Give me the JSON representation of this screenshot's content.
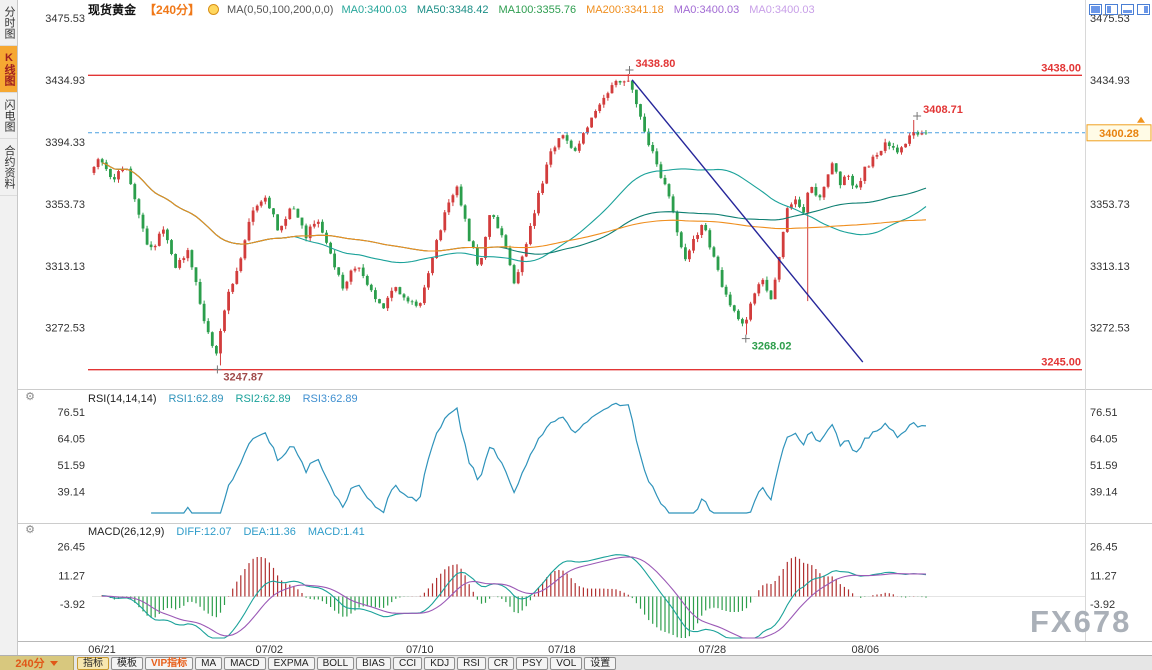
{
  "sidebar": {
    "items": [
      {
        "label": "分时图",
        "active": false
      },
      {
        "label": "K线图",
        "active": true
      },
      {
        "label": "闪电图",
        "active": false
      },
      {
        "label": "合约资料",
        "active": false
      }
    ]
  },
  "header": {
    "symbol": "现货黄金",
    "period_tag": "【240分】",
    "ma_settings": "MA(0,50,100,200,0,0)",
    "ma_values": [
      {
        "label": "MA0:3400.03",
        "color": "#26a69a"
      },
      {
        "label": "MA50:3348.42",
        "color": "#1b8e86"
      },
      {
        "label": "MA100:3355.76",
        "color": "#2e9e50"
      },
      {
        "label": "MA200:3341.18",
        "color": "#ef8e1e"
      },
      {
        "label": "MA0:3400.03",
        "color": "#a26bd4"
      },
      {
        "label": "MA0:3400.03",
        "color": "#c89fe8"
      }
    ],
    "corner_icons": [
      "layout-single-icon",
      "layout-columns-icon",
      "layout-rows-icon",
      "layout-grid-icon"
    ]
  },
  "rsi_header": {
    "title": "RSI(14,14,14)",
    "values": [
      {
        "label": "RSI1:62.89",
        "color": "#2f93bb"
      },
      {
        "label": "RSI2:62.89",
        "color": "#1ba29a"
      },
      {
        "label": "RSI3:62.89",
        "color": "#3f8fd0"
      }
    ]
  },
  "macd_header": {
    "title": "MACD(26,12,9)",
    "values": [
      {
        "label": "DIFF:12.07",
        "color": "#2f9cc9"
      },
      {
        "label": "DEA:11.36",
        "color": "#2f9cc9"
      },
      {
        "label": "MACD:1.41",
        "color": "#2f9cc9"
      }
    ]
  },
  "toolbar": {
    "period": "240分",
    "items": [
      {
        "label": "指标",
        "style": "active"
      },
      {
        "label": "模板",
        "style": ""
      },
      {
        "label": "VIP指标",
        "style": "vip"
      },
      {
        "label": "MA",
        "style": ""
      },
      {
        "label": "MACD",
        "style": ""
      },
      {
        "label": "EXPMA",
        "style": ""
      },
      {
        "label": "BOLL",
        "style": ""
      },
      {
        "label": "BIAS",
        "style": ""
      },
      {
        "label": "CCI",
        "style": ""
      },
      {
        "label": "KDJ",
        "style": ""
      },
      {
        "label": "RSI",
        "style": ""
      },
      {
        "label": "CR",
        "style": ""
      },
      {
        "label": "PSY",
        "style": ""
      },
      {
        "label": "VOL",
        "style": ""
      },
      {
        "label": "设置",
        "style": ""
      }
    ]
  },
  "watermark": "FX678",
  "icons": {
    "gear": "⚙"
  },
  "chart_data": {
    "type": "candlestick",
    "title": "现货黄金 240分钟K线",
    "x_ticks": [
      {
        "label": "06/21",
        "f": 0.012
      },
      {
        "label": "07/02",
        "f": 0.212
      },
      {
        "label": "07/10",
        "f": 0.392
      },
      {
        "label": "07/18",
        "f": 0.562
      },
      {
        "label": "07/28",
        "f": 0.742
      },
      {
        "label": "08/06",
        "f": 0.925
      }
    ],
    "main": {
      "y_ticks": [
        3475.53,
        3434.93,
        3394.33,
        3353.73,
        3313.13,
        3272.53
      ],
      "ylim": [
        3235,
        3475.53
      ],
      "hlines": [
        {
          "value": 3438.0,
          "label": "3438.00",
          "color": "#e23535"
        },
        {
          "value": 3245.0,
          "label": "3245.00",
          "color": "#e23535"
        }
      ],
      "last_price": {
        "value": 3400.28,
        "label": "3400.28",
        "color": "#e8820e"
      },
      "annotations": [
        {
          "f": 0.643,
          "value": 3438.8,
          "text": "3438.80",
          "color": "#e23535",
          "pos": "above"
        },
        {
          "f": 0.987,
          "value": 3408.71,
          "text": "3408.71",
          "color": "#e23535",
          "pos": "above"
        },
        {
          "f": 0.15,
          "value": 3247.87,
          "text": "3247.87",
          "color": "#a04a4a",
          "pos": "below"
        },
        {
          "f": 0.782,
          "value": 3268.02,
          "text": "3268.02",
          "color": "#2e9e4c",
          "pos": "below"
        }
      ],
      "trendline": {
        "f1": 0.646,
        "p1": 3435,
        "f2": 0.922,
        "p2": 3250,
        "color": "#26269a"
      },
      "pins": [
        {
          "f": 0.15,
          "type": "low",
          "value": 3247.87
        },
        {
          "f": 0.643,
          "type": "high",
          "value": 3438.8
        },
        {
          "f": 0.782,
          "type": "low",
          "value": 3268.02
        },
        {
          "f": 0.858,
          "type": "low",
          "value": 3290
        },
        {
          "f": 0.987,
          "type": "high",
          "value": 3408.71
        },
        {
          "f": 1.0,
          "type": "close",
          "value": 3400.28
        }
      ],
      "price_path": [
        [
          0,
          3374
        ],
        [
          0.012,
          3386
        ],
        [
          0.028,
          3368
        ],
        [
          0.042,
          3380
        ],
        [
          0.058,
          3348
        ],
        [
          0.072,
          3322
        ],
        [
          0.088,
          3338
        ],
        [
          0.103,
          3312
        ],
        [
          0.118,
          3324
        ],
        [
          0.133,
          3284
        ],
        [
          0.15,
          3254
        ],
        [
          0.163,
          3290
        ],
        [
          0.178,
          3314
        ],
        [
          0.194,
          3350
        ],
        [
          0.21,
          3358
        ],
        [
          0.226,
          3336
        ],
        [
          0.242,
          3352
        ],
        [
          0.258,
          3332
        ],
        [
          0.272,
          3346
        ],
        [
          0.288,
          3320
        ],
        [
          0.302,
          3300
        ],
        [
          0.318,
          3314
        ],
        [
          0.334,
          3298
        ],
        [
          0.35,
          3286
        ],
        [
          0.364,
          3302
        ],
        [
          0.378,
          3290
        ],
        [
          0.394,
          3288
        ],
        [
          0.412,
          3324
        ],
        [
          0.428,
          3354
        ],
        [
          0.44,
          3364
        ],
        [
          0.454,
          3330
        ],
        [
          0.466,
          3312
        ],
        [
          0.478,
          3348
        ],
        [
          0.492,
          3336
        ],
        [
          0.508,
          3302
        ],
        [
          0.524,
          3332
        ],
        [
          0.538,
          3362
        ],
        [
          0.552,
          3390
        ],
        [
          0.566,
          3400
        ],
        [
          0.578,
          3386
        ],
        [
          0.592,
          3400
        ],
        [
          0.607,
          3416
        ],
        [
          0.622,
          3430
        ],
        [
          0.643,
          3436
        ],
        [
          0.656,
          3418
        ],
        [
          0.668,
          3394
        ],
        [
          0.68,
          3376
        ],
        [
          0.692,
          3360
        ],
        [
          0.702,
          3338
        ],
        [
          0.713,
          3316
        ],
        [
          0.723,
          3332
        ],
        [
          0.734,
          3342
        ],
        [
          0.745,
          3320
        ],
        [
          0.756,
          3300
        ],
        [
          0.768,
          3286
        ],
        [
          0.782,
          3272
        ],
        [
          0.794,
          3296
        ],
        [
          0.805,
          3304
        ],
        [
          0.815,
          3292
        ],
        [
          0.824,
          3316
        ],
        [
          0.833,
          3350
        ],
        [
          0.843,
          3358
        ],
        [
          0.853,
          3348
        ],
        [
          0.862,
          3366
        ],
        [
          0.872,
          3354
        ],
        [
          0.882,
          3374
        ],
        [
          0.89,
          3382
        ],
        [
          0.898,
          3366
        ],
        [
          0.907,
          3374
        ],
        [
          0.916,
          3362
        ],
        [
          0.926,
          3376
        ],
        [
          0.94,
          3386
        ],
        [
          0.954,
          3394
        ],
        [
          0.968,
          3388
        ],
        [
          0.982,
          3398
        ],
        [
          1,
          3402
        ]
      ],
      "candle_count": 205,
      "colors": {
        "up": "#d23c3c",
        "down": "#2b9e4c",
        "ma50": "#1ba29a",
        "ma100": "#0e7f72",
        "ma200": "#ef8e1e",
        "dashed_line": "#4aa0e0"
      }
    },
    "rsi": {
      "y_ticks": [
        76.51,
        64.05,
        51.59,
        39.14
      ],
      "ylim": [
        29,
        84
      ],
      "period": 14,
      "color": "#2f93bb"
    },
    "macd": {
      "y_ticks": [
        26.45,
        11.27,
        -3.92
      ],
      "ylim": [
        -22,
        30
      ],
      "diff_color": "#1ba29a",
      "dea_color": "#9b59b6",
      "up_color": "#b03030",
      "down_color": "#2e9e4c"
    }
  }
}
